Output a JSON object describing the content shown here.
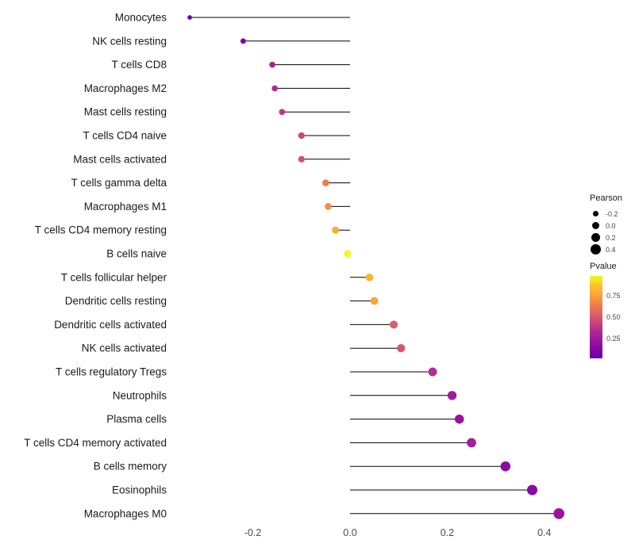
{
  "figure": {
    "background": "#ffffff",
    "text_color": "#1a1a1a",
    "tick_text_color": "#4d4d4d"
  },
  "chart_data": {
    "type": "scatter",
    "subtype": "lollipop",
    "orientation": "horizontal",
    "title": "",
    "xlabel": "",
    "ylabel": "",
    "xlim": [
      -0.36,
      0.48
    ],
    "grid": false,
    "stem_color": "#000000",
    "xticks": {
      "labels": [
        "-0.2",
        "0.0",
        "0.2",
        "0.4"
      ],
      "values": [
        -0.2,
        0.0,
        0.2,
        0.4
      ]
    },
    "points": [
      {
        "label": "Monocytes",
        "pearson": -0.33,
        "color": "#6300a7"
      },
      {
        "label": "NK cells resting",
        "pearson": -0.22,
        "color": "#7e03a8"
      },
      {
        "label": "T cells CD8",
        "pearson": -0.16,
        "color": "#a62098"
      },
      {
        "label": "Macrophages M2",
        "pearson": -0.155,
        "color": "#b12a90"
      },
      {
        "label": "Mast cells resting",
        "pearson": -0.14,
        "color": "#bd3786"
      },
      {
        "label": "T cells CD4 naive",
        "pearson": -0.1,
        "color": "#ca457a"
      },
      {
        "label": "Mast cells activated",
        "pearson": -0.1,
        "color": "#d14e72"
      },
      {
        "label": "T cells gamma delta",
        "pearson": -0.05,
        "color": "#ee7b51"
      },
      {
        "label": "Macrophages M1",
        "pearson": -0.045,
        "color": "#f68f44"
      },
      {
        "label": "T cells CD4 memory resting",
        "pearson": -0.03,
        "color": "#fdac33"
      },
      {
        "label": "B cells naive",
        "pearson": -0.005,
        "color": "#f0f921"
      },
      {
        "label": "T cells follicular helper",
        "pearson": 0.04,
        "color": "#fdb42f"
      },
      {
        "label": "Dendritic cells resting",
        "pearson": 0.05,
        "color": "#fba238"
      },
      {
        "label": "Dendritic cells activated",
        "pearson": 0.09,
        "color": "#dc5e6a"
      },
      {
        "label": "NK cells activated",
        "pearson": 0.105,
        "color": "#d6556d"
      },
      {
        "label": "T cells regulatory Tregs",
        "pearson": 0.17,
        "color": "#b42e8d"
      },
      {
        "label": "Neutrophils",
        "pearson": 0.21,
        "color": "#a01b9b"
      },
      {
        "label": "Plasma cells",
        "pearson": 0.225,
        "color": "#9613a1"
      },
      {
        "label": "T cells CD4 memory activated",
        "pearson": 0.25,
        "color": "#a21e9a"
      },
      {
        "label": "B cells memory",
        "pearson": 0.32,
        "color": "#8e0ca4"
      },
      {
        "label": "Eosinophils",
        "pearson": 0.375,
        "color": "#8c0aa5"
      },
      {
        "label": "Macrophages M0",
        "pearson": 0.43,
        "color": "#9c11a1"
      }
    ],
    "legends": {
      "size": {
        "title": "Pearson",
        "entries": [
          "-0.2",
          "0.0",
          "0.2",
          "0.4"
        ],
        "entry_values": [
          -0.2,
          0.0,
          0.2,
          0.4
        ],
        "dot_color": "#000000"
      },
      "color": {
        "title": "Pvalue",
        "tick_labels": [
          "0.75",
          "0.50",
          "0.25"
        ],
        "tick_positions": [
          0.24,
          0.5,
          0.76
        ],
        "gradient_top_to_bottom": [
          "#f0f921",
          "#fdc527",
          "#fca636",
          "#f2844b",
          "#e16462",
          "#cc4778",
          "#b12a90",
          "#9c179e",
          "#8305a7",
          "#6a00a8"
        ]
      }
    }
  }
}
